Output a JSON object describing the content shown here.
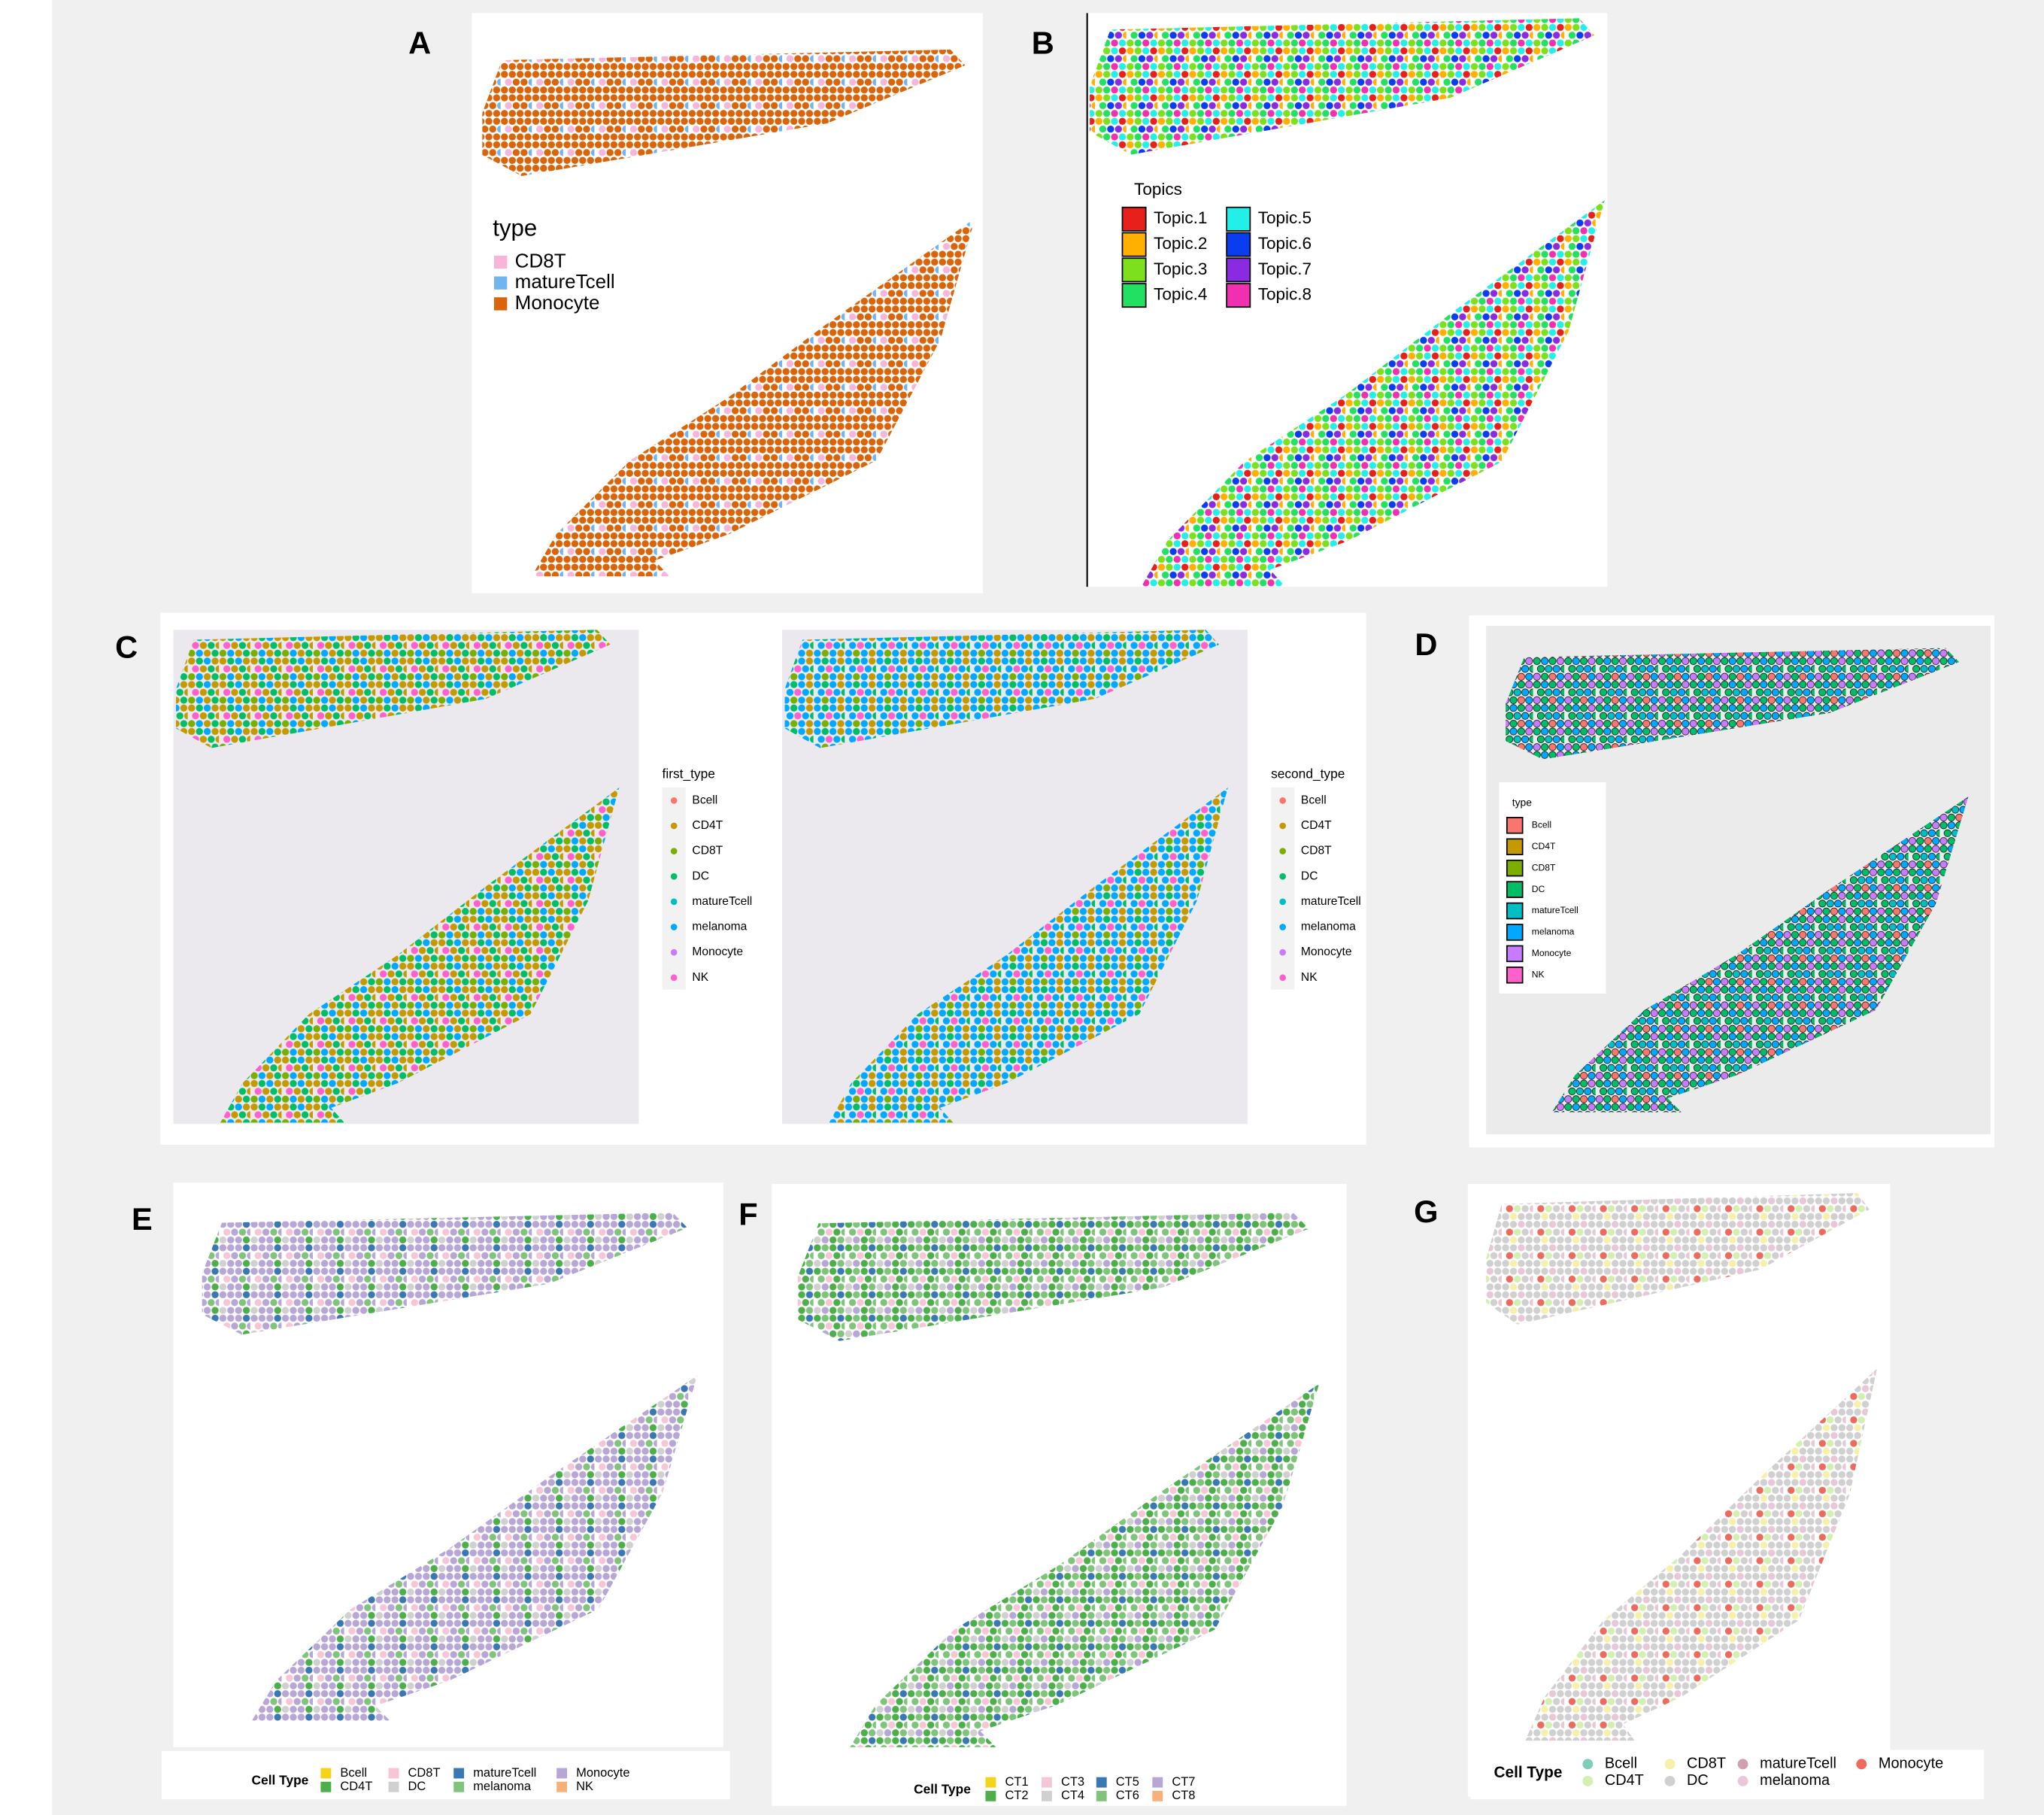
{
  "panels": [
    {
      "label": "A",
      "legends": [
        {
          "title": "type",
          "items": [
            {
              "label": "CD8T",
              "color": "#f7b6d9"
            },
            {
              "label": "matureTcell",
              "color": "#72b4ef"
            },
            {
              "label": "Monocyte",
              "color": "#d9640a"
            }
          ]
        }
      ]
    },
    {
      "label": "B",
      "legends": [
        {
          "title": "Topics",
          "items": [
            {
              "label": "Topic.1",
              "color": "#e8201c"
            },
            {
              "label": "Topic.2",
              "color": "#ffb000"
            },
            {
              "label": "Topic.3",
              "color": "#7de01c"
            },
            {
              "label": "Topic.4",
              "color": "#22e060"
            },
            {
              "label": "Topic.5",
              "color": "#22f0e8"
            },
            {
              "label": "Topic.6",
              "color": "#0a3cf0"
            },
            {
              "label": "Topic.7",
              "color": "#8a2be2"
            },
            {
              "label": "Topic.8",
              "color": "#f030b0"
            }
          ]
        }
      ]
    },
    {
      "label": "C",
      "legends": [
        {
          "title": "first_type",
          "items": [
            {
              "label": "Bcell",
              "color": "#f8766d"
            },
            {
              "label": "CD4T",
              "color": "#c49a00"
            },
            {
              "label": "CD8T",
              "color": "#7cae00"
            },
            {
              "label": "DC",
              "color": "#00be67"
            },
            {
              "label": "matureTcell",
              "color": "#00bfc4"
            },
            {
              "label": "melanoma",
              "color": "#00a9ff"
            },
            {
              "label": "Monocyte",
              "color": "#c77cff"
            },
            {
              "label": "NK",
              "color": "#ff61cc"
            }
          ]
        },
        {
          "title": "second_type",
          "items": [
            {
              "label": "Bcell",
              "color": "#f8766d"
            },
            {
              "label": "CD4T",
              "color": "#c49a00"
            },
            {
              "label": "CD8T",
              "color": "#7cae00"
            },
            {
              "label": "DC",
              "color": "#00be67"
            },
            {
              "label": "matureTcell",
              "color": "#00bfc4"
            },
            {
              "label": "melanoma",
              "color": "#00a9ff"
            },
            {
              "label": "Monocyte",
              "color": "#c77cff"
            },
            {
              "label": "NK",
              "color": "#ff61cc"
            }
          ]
        }
      ]
    },
    {
      "label": "D",
      "legends": [
        {
          "title": "type",
          "items": [
            {
              "label": "Bcell",
              "color": "#f8766d"
            },
            {
              "label": "CD4T",
              "color": "#c49a00"
            },
            {
              "label": "CD8T",
              "color": "#7cae00"
            },
            {
              "label": "DC",
              "color": "#00be67"
            },
            {
              "label": "matureTcell",
              "color": "#00bfc4"
            },
            {
              "label": "melanoma",
              "color": "#00a9ff"
            },
            {
              "label": "Monocyte",
              "color": "#c77cff"
            },
            {
              "label": "NK",
              "color": "#ff61cc"
            }
          ]
        }
      ]
    },
    {
      "label": "E",
      "legends": [
        {
          "title": "Cell Type",
          "items": [
            {
              "label": "Bcell",
              "color": "#f5d31a"
            },
            {
              "label": "CD4T",
              "color": "#4daf4a"
            },
            {
              "label": "CD8T",
              "color": "#f7c6d6"
            },
            {
              "label": "DC",
              "color": "#d0d0d0"
            },
            {
              "label": "matureTcell",
              "color": "#3a78b4"
            },
            {
              "label": "melanoma",
              "color": "#80c47c"
            },
            {
              "label": "Monocyte",
              "color": "#b8a6d6"
            },
            {
              "label": "NK",
              "color": "#f8b07a"
            }
          ]
        }
      ]
    },
    {
      "label": "F",
      "legends": [
        {
          "title": "Cell Type",
          "items": [
            {
              "label": "CT1",
              "color": "#f5d31a"
            },
            {
              "label": "CT2",
              "color": "#4daf4a"
            },
            {
              "label": "CT3",
              "color": "#f7c6d6"
            },
            {
              "label": "CT4",
              "color": "#d0d0d0"
            },
            {
              "label": "CT5",
              "color": "#3a78b4"
            },
            {
              "label": "CT6",
              "color": "#80c47c"
            },
            {
              "label": "CT7",
              "color": "#b8a6d6"
            },
            {
              "label": "CT8",
              "color": "#f8b07a"
            }
          ]
        }
      ]
    },
    {
      "label": "G",
      "legends": [
        {
          "title": "Cell Type",
          "items": [
            {
              "label": "Bcell",
              "color": "#7fcdbb"
            },
            {
              "label": "CD4T",
              "color": "#d4f0b0"
            },
            {
              "label": "CD8T",
              "color": "#f6f0a8"
            },
            {
              "label": "DC",
              "color": "#d0d0d0"
            },
            {
              "label": "matureTcell",
              "color": "#d0a0b0"
            },
            {
              "label": "melanoma",
              "color": "#e8c8d8"
            },
            {
              "label": "Monocyte",
              "color": "#ee6a5e"
            }
          ]
        }
      ]
    }
  ]
}
